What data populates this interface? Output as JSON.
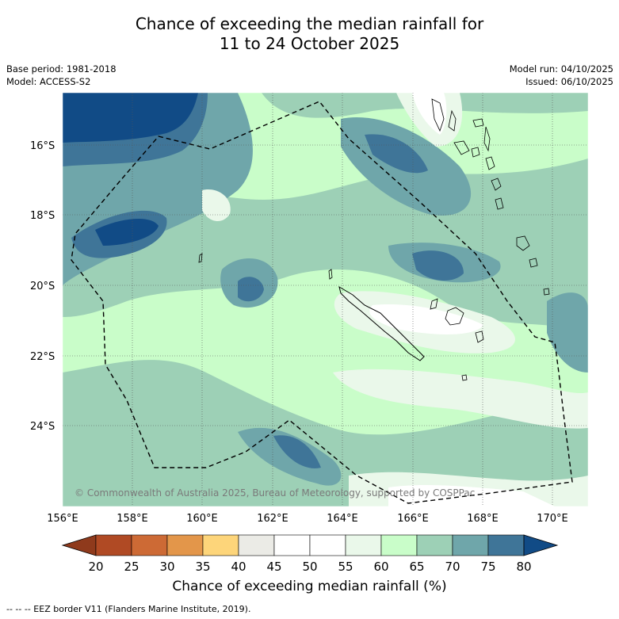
{
  "header": {
    "title_line1": "Chance of exceeding the median rainfall for",
    "title_line2": "11 to 24 October 2025",
    "base_period": "Base period: 1981-2018",
    "model": "Model: ACCESS-S2",
    "model_run": "Model run: 04/10/2025",
    "issued": "Issued: 06/10/2025"
  },
  "map": {
    "lat_labels": [
      "16°S",
      "18°S",
      "20°S",
      "22°S",
      "24°S"
    ],
    "lon_labels": [
      "156°E",
      "158°E",
      "160°E",
      "162°E",
      "164°E",
      "166°E",
      "168°E",
      "170°E"
    ],
    "copyright": "© Commonwealth of Australia 2025, Bureau of Meteorology, supported by COSPPac"
  },
  "colorbar": {
    "ticks": [
      "20",
      "25",
      "30",
      "35",
      "40",
      "45",
      "50",
      "55",
      "60",
      "65",
      "70",
      "75",
      "80"
    ],
    "colors": [
      "#8f3a1c",
      "#b04a24",
      "#cd6a35",
      "#e3964a",
      "#fdd57a",
      "#ebebe6",
      "#ffffff",
      "#ffffff",
      "#eaf8ea",
      "#c9fdc9",
      "#9dd0b6",
      "#6fa6aa",
      "#3f7598",
      "#114b86"
    ],
    "title": "Chance of exceeding median rainfall (%)"
  },
  "legend": {
    "eez_note": "--  --  -- EEZ border V11 (Flanders Marine Institute, 2019)."
  }
}
